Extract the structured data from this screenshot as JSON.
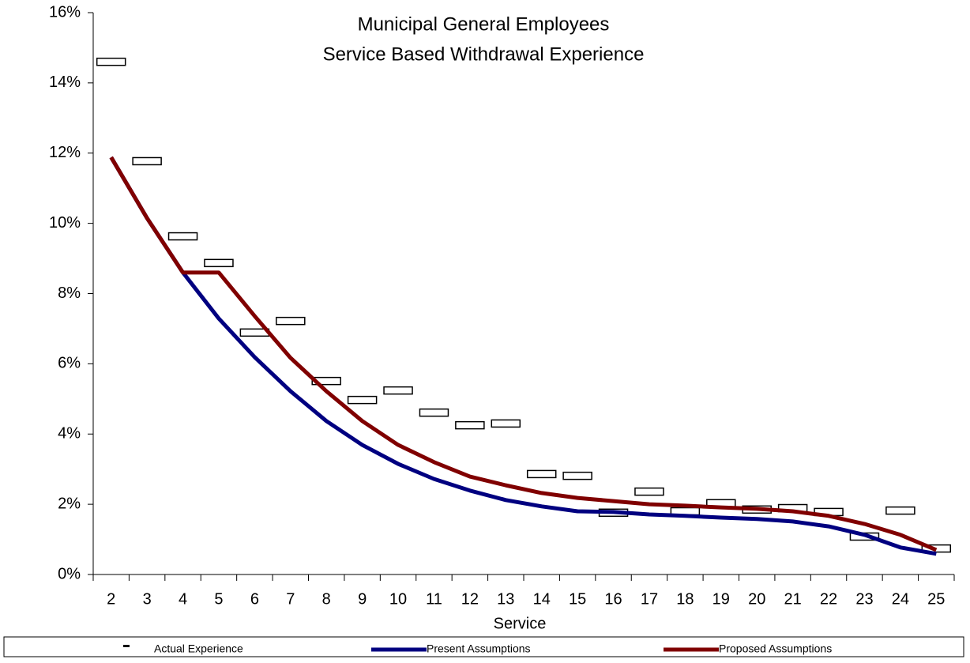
{
  "chart_data": {
    "type": "line",
    "title": "Municipal General Employees",
    "subtitle": "Service Based Withdrawal Experience",
    "x_label": "Service",
    "categories": [
      2,
      3,
      4,
      5,
      6,
      7,
      8,
      9,
      10,
      11,
      12,
      13,
      14,
      15,
      16,
      17,
      18,
      19,
      20,
      21,
      22,
      23,
      24,
      25
    ],
    "ylim": [
      0,
      16
    ],
    "yticks": [
      {
        "value": 0,
        "label": "0%"
      },
      {
        "value": 2,
        "label": "2%"
      },
      {
        "value": 4,
        "label": "4%"
      },
      {
        "value": 6,
        "label": "6%"
      },
      {
        "value": 8,
        "label": "8%"
      },
      {
        "value": 10,
        "label": "10%"
      },
      {
        "value": 12,
        "label": "12%"
      },
      {
        "value": 14,
        "label": "14%"
      },
      {
        "value": 16,
        "label": "16%"
      }
    ],
    "legend": "bottom",
    "series": [
      {
        "name": "Actual Experience",
        "style": "marker",
        "color": "#000000",
        "values": [
          14.6,
          11.77,
          9.63,
          8.87,
          6.89,
          7.22,
          5.51,
          4.97,
          5.24,
          4.61,
          4.25,
          4.3,
          2.86,
          2.81,
          1.76,
          2.36,
          1.8,
          2.03,
          1.85,
          1.89,
          1.78,
          1.08,
          1.82,
          0.74
        ]
      },
      {
        "name": "Present Assumptions",
        "style": "line",
        "color": "#000080",
        "values": [
          11.88,
          10.15,
          8.6,
          7.29,
          6.19,
          5.22,
          4.37,
          3.69,
          3.15,
          2.72,
          2.39,
          2.12,
          1.94,
          1.8,
          1.78,
          1.71,
          1.67,
          1.62,
          1.58,
          1.51,
          1.37,
          1.13,
          0.77,
          0.59
        ]
      },
      {
        "name": "Proposed Assumptions",
        "style": "line",
        "color": "#800000",
        "values": [
          11.88,
          10.15,
          8.6,
          8.6,
          7.36,
          6.17,
          5.22,
          4.37,
          3.69,
          3.2,
          2.79,
          2.54,
          2.32,
          2.18,
          2.09,
          2.0,
          1.96,
          1.91,
          1.87,
          1.8,
          1.67,
          1.44,
          1.13,
          0.7
        ]
      }
    ]
  }
}
